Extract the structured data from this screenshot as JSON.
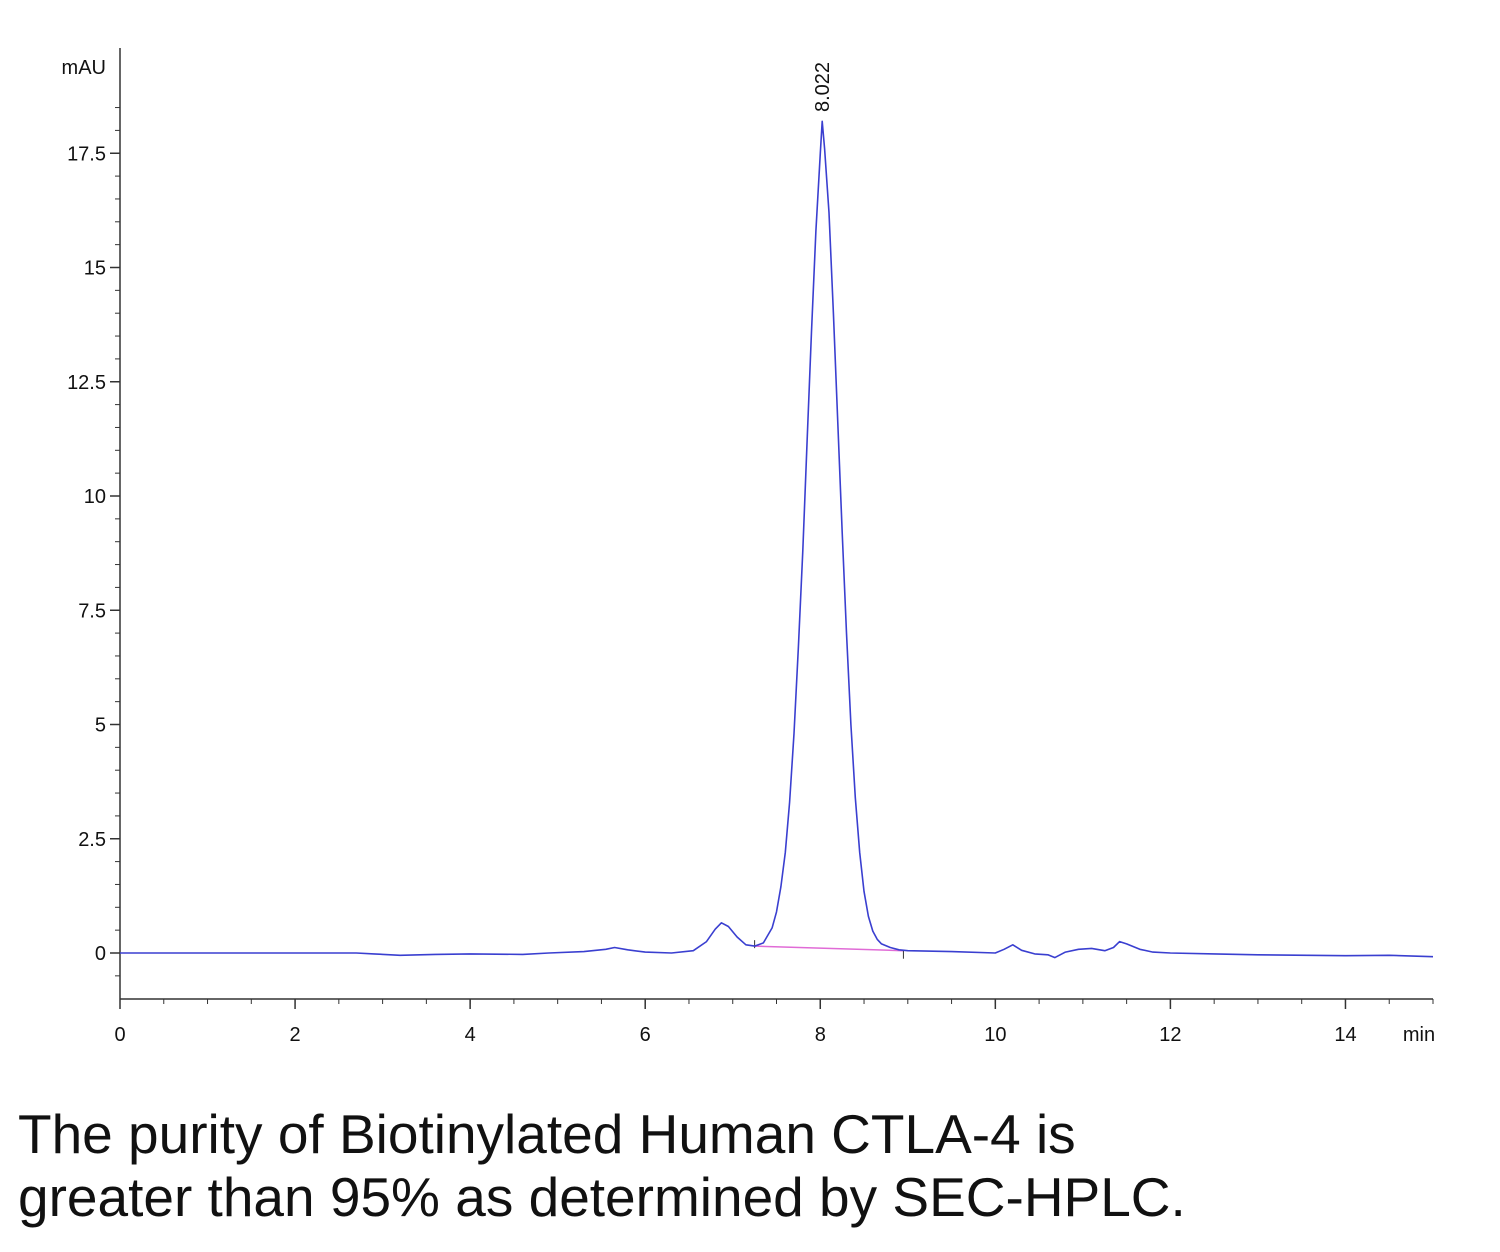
{
  "chart_data": {
    "type": "line",
    "title": "",
    "xlabel": "min",
    "ylabel": "mAU",
    "xlim": [
      0,
      15
    ],
    "ylim": [
      -0.8,
      19
    ],
    "x_ticks": [
      0,
      2,
      4,
      6,
      8,
      10,
      12,
      14
    ],
    "y_ticks": [
      0,
      2.5,
      5,
      7.5,
      10,
      12.5,
      15,
      17.5
    ],
    "x_tick_labels": [
      "0",
      "2",
      "4",
      "6",
      "8",
      "10",
      "12",
      "14"
    ],
    "y_tick_labels": [
      "0",
      "2.5",
      "5",
      "7.5",
      "10",
      "12.5",
      "15",
      "17.5"
    ],
    "grid": false,
    "series": [
      {
        "color": "#3a3fd0",
        "x": [
          0,
          2,
          2.7,
          2.9,
          3.2,
          3.6,
          4.0,
          4.6,
          4.9,
          5.3,
          5.55,
          5.65,
          5.8,
          6.0,
          6.3,
          6.55,
          6.7,
          6.8,
          6.87,
          6.95,
          7.05,
          7.15,
          7.25,
          7.35,
          7.45,
          7.5,
          7.55,
          7.6,
          7.65,
          7.7,
          7.75,
          7.8,
          7.85,
          7.9,
          7.95,
          8.0,
          8.022,
          8.05,
          8.1,
          8.15,
          8.2,
          8.25,
          8.3,
          8.35,
          8.4,
          8.45,
          8.5,
          8.55,
          8.6,
          8.65,
          8.7,
          8.8,
          8.9,
          9.0,
          9.5,
          10.0,
          10.1,
          10.2,
          10.3,
          10.45,
          10.6,
          10.68,
          10.8,
          10.95,
          11.1,
          11.25,
          11.35,
          11.42,
          11.5,
          11.65,
          11.8,
          12.0,
          12.5,
          13.0,
          14.0,
          14.5,
          15.0
        ],
        "y": [
          0.0,
          0.0,
          0.0,
          -0.02,
          -0.05,
          -0.03,
          -0.02,
          -0.03,
          0.0,
          0.03,
          0.08,
          0.12,
          0.07,
          0.02,
          0.0,
          0.05,
          0.25,
          0.52,
          0.66,
          0.58,
          0.35,
          0.18,
          0.15,
          0.22,
          0.55,
          0.9,
          1.45,
          2.2,
          3.3,
          4.8,
          6.7,
          8.8,
          11.2,
          13.6,
          15.8,
          17.5,
          18.2,
          17.6,
          16.2,
          14.0,
          11.6,
          9.2,
          7.0,
          5.0,
          3.4,
          2.2,
          1.35,
          0.8,
          0.48,
          0.3,
          0.2,
          0.12,
          0.07,
          0.05,
          0.03,
          0.0,
          0.08,
          0.18,
          0.06,
          -0.02,
          -0.04,
          -0.1,
          0.02,
          0.08,
          0.1,
          0.05,
          0.12,
          0.25,
          0.2,
          0.08,
          0.02,
          0.0,
          -0.02,
          -0.04,
          -0.06,
          -0.05,
          -0.08
        ]
      }
    ],
    "baseline": {
      "color": "#e06bd6",
      "x": [
        7.25,
        8.95
      ],
      "y": [
        0.15,
        0.05
      ]
    },
    "annotations": [
      {
        "text": "8.022",
        "x": 8.022,
        "y": 18.2
      }
    ]
  },
  "caption": {
    "line1": "The purity of Biotinylated Human CTLA-4 is",
    "line2": "greater than 95% as determined by SEC-HPLC."
  },
  "colors": {
    "trace": "#3a3fd0",
    "baseline": "#e06bd6",
    "axis": "#333333",
    "text": "#111111"
  }
}
